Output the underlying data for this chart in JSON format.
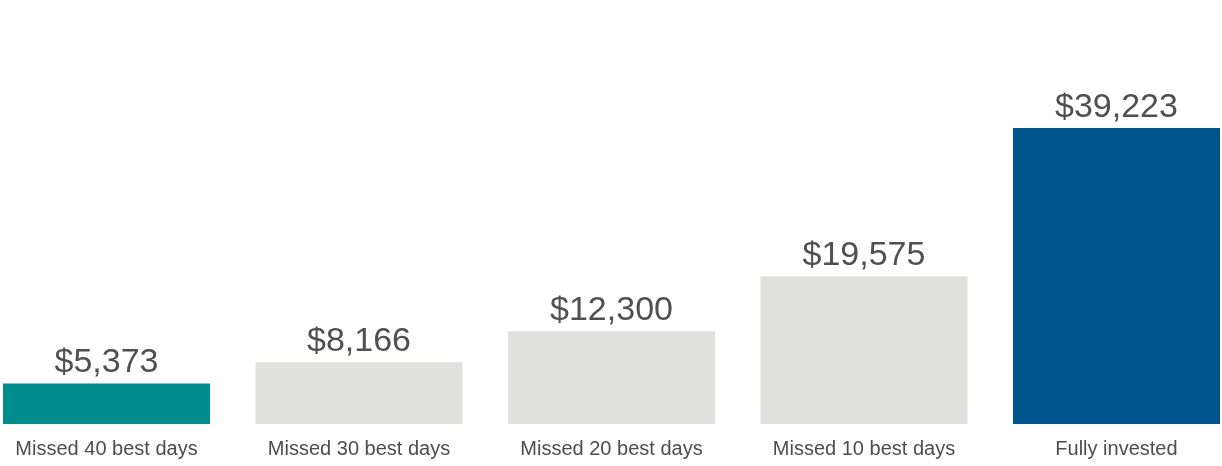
{
  "chart_data": {
    "type": "bar",
    "categories": [
      "Missed 40 best days",
      "Missed 30 best days",
      "Missed 20 best days",
      "Missed 10 best days",
      "Fully invested"
    ],
    "values": [
      5373,
      8166,
      12300,
      19575,
      39223
    ],
    "colors": [
      "#008b8c",
      "#e0e0de",
      "#e0e0de",
      "#e0e0de",
      "#00558c"
    ],
    "value_labels": [
      "$5,373",
      "$8,166",
      "$12,300",
      "$19,575",
      "$39,223"
    ]
  }
}
